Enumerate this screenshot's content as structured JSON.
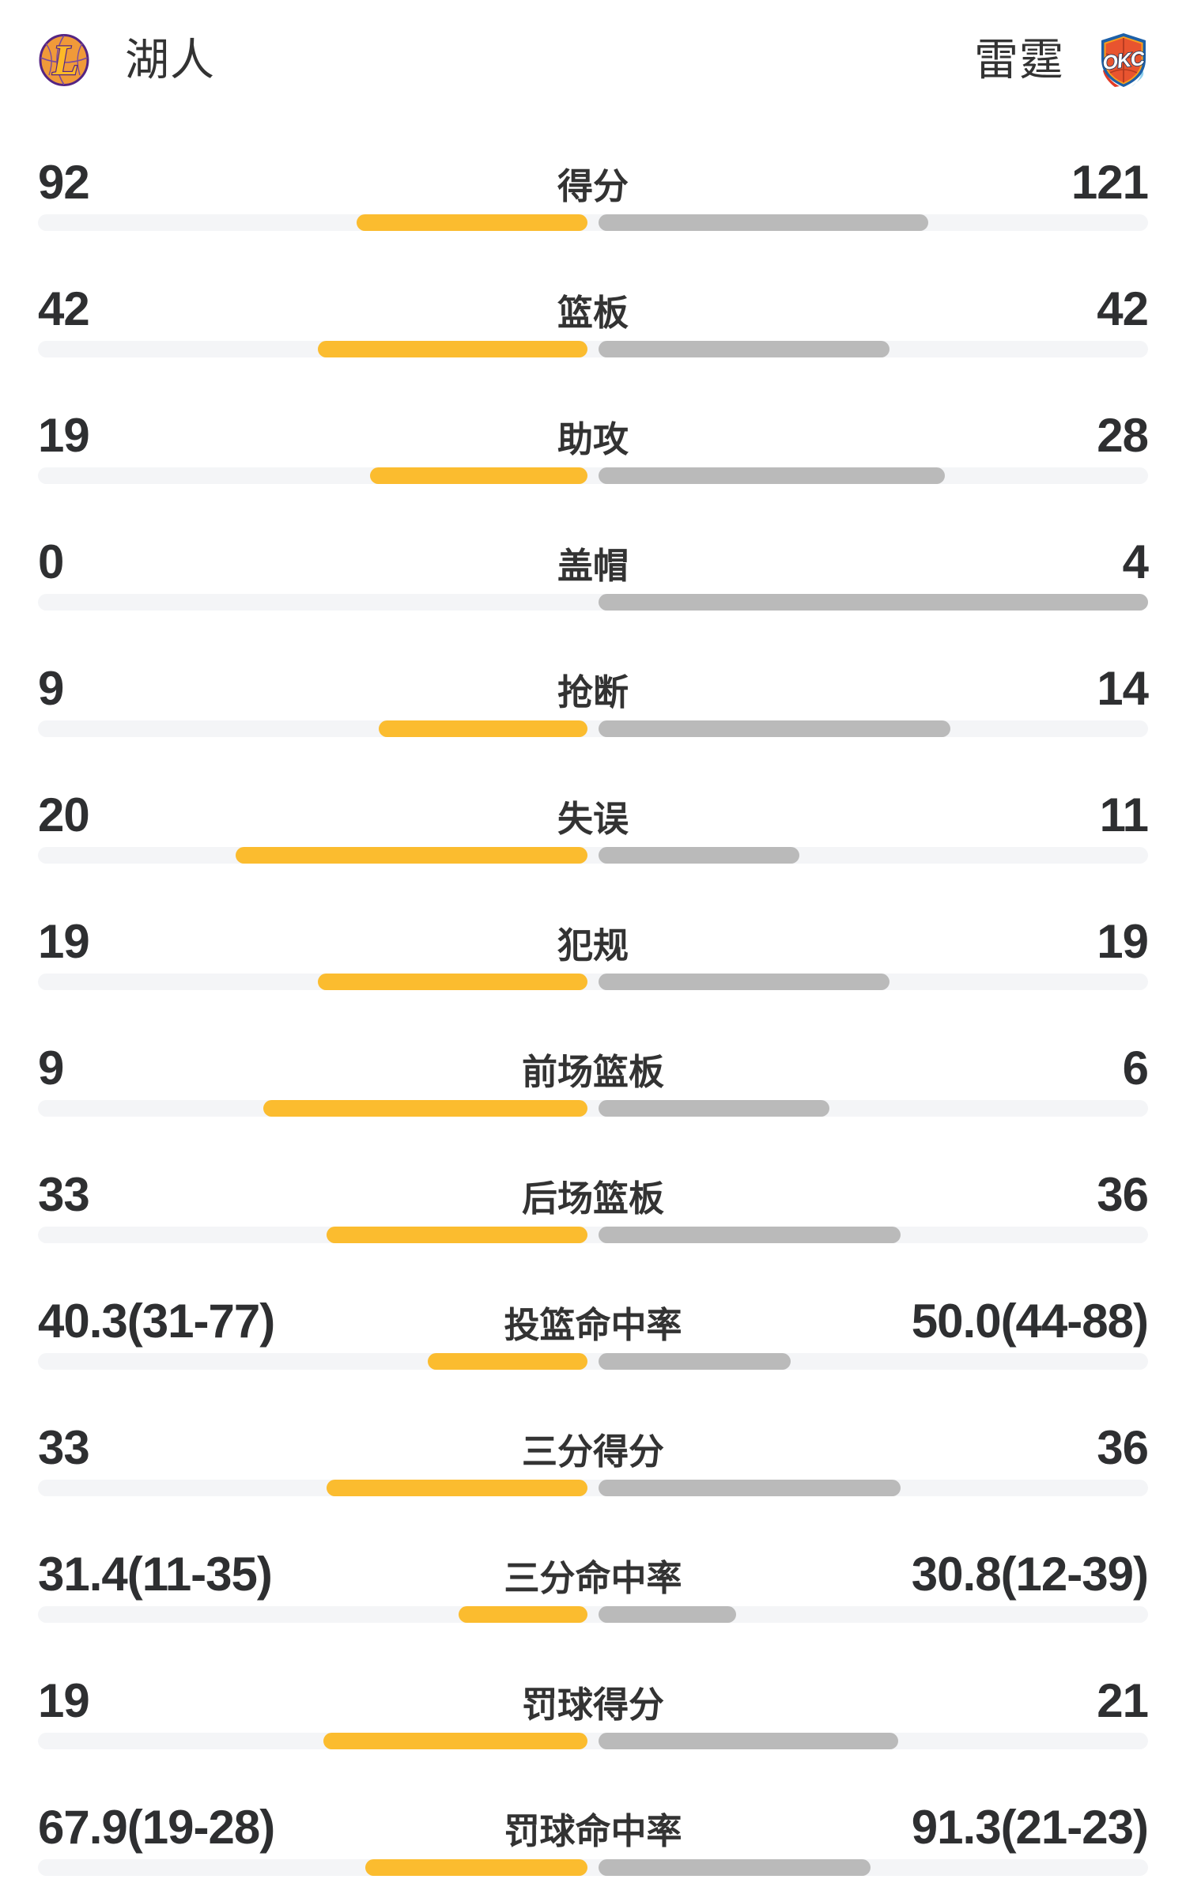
{
  "header": {
    "home": {
      "name": "湖人",
      "logo_icon": "lakers-logo"
    },
    "away": {
      "name": "雷霆",
      "logo_icon": "okc-logo"
    }
  },
  "colors": {
    "home_bar": "#FBBC2F",
    "away_bar": "#BABABA",
    "track": "#F4F5F7",
    "number_text": "#2E2F31",
    "label_text": "#333333",
    "lakers_purple": "#552583",
    "lakers_gold": "#FDB927",
    "okc_blue": "#1D60A8",
    "okc_orange": "#E8542F"
  },
  "chart_data": {
    "type": "bar",
    "note": "mirrored comparison bars anchored at center; bar_pct = filled percent of each half track",
    "categories": [
      "得分",
      "篮板",
      "助攻",
      "盖帽",
      "抢断",
      "失误",
      "犯规",
      "前场篮板",
      "后场篮板",
      "投篮命中率",
      "三分得分",
      "三分命中率",
      "罚球得分",
      "罚球命中率"
    ],
    "series": [
      {
        "name": "湖人",
        "values": [
          92,
          42,
          19,
          0,
          9,
          20,
          19,
          9,
          33,
          40.3,
          33,
          31.4,
          19,
          67.9
        ]
      },
      {
        "name": "雷霆",
        "values": [
          121,
          42,
          28,
          4,
          14,
          11,
          19,
          6,
          36,
          50.0,
          36,
          30.8,
          21,
          91.3
        ]
      }
    ]
  },
  "stats": [
    {
      "label": "得分",
      "home": "92",
      "away": "121",
      "home_bar_pct": 42,
      "away_bar_pct": 60
    },
    {
      "label": "篮板",
      "home": "42",
      "away": "42",
      "home_bar_pct": 49,
      "away_bar_pct": 53
    },
    {
      "label": "助攻",
      "home": "19",
      "away": "28",
      "home_bar_pct": 39.5,
      "away_bar_pct": 63
    },
    {
      "label": "盖帽",
      "home": "0",
      "away": "4",
      "home_bar_pct": 0,
      "away_bar_pct": 100
    },
    {
      "label": "抢断",
      "home": "9",
      "away": "14",
      "home_bar_pct": 38,
      "away_bar_pct": 64
    },
    {
      "label": "失误",
      "home": "20",
      "away": "11",
      "home_bar_pct": 64,
      "away_bar_pct": 36.5
    },
    {
      "label": "犯规",
      "home": "19",
      "away": "19",
      "home_bar_pct": 49,
      "away_bar_pct": 53
    },
    {
      "label": "前场篮板",
      "home": "9",
      "away": "6",
      "home_bar_pct": 59,
      "away_bar_pct": 42
    },
    {
      "label": "后场篮板",
      "home": "33",
      "away": "36",
      "home_bar_pct": 47.5,
      "away_bar_pct": 55
    },
    {
      "label": "投篮命中率",
      "home": "40.3(31-77)",
      "away": "50.0(44-88)",
      "home_bar_pct": 29,
      "away_bar_pct": 35
    },
    {
      "label": "三分得分",
      "home": "33",
      "away": "36",
      "home_bar_pct": 47.5,
      "away_bar_pct": 55
    },
    {
      "label": "三分命中率",
      "home": "31.4(11-35)",
      "away": "30.8(12-39)",
      "home_bar_pct": 23.5,
      "away_bar_pct": 25
    },
    {
      "label": "罚球得分",
      "home": "19",
      "away": "21",
      "home_bar_pct": 48,
      "away_bar_pct": 54.5
    },
    {
      "label": "罚球命中率",
      "home": "67.9(19-28)",
      "away": "91.3(21-23)",
      "home_bar_pct": 40.5,
      "away_bar_pct": 49.5
    }
  ]
}
